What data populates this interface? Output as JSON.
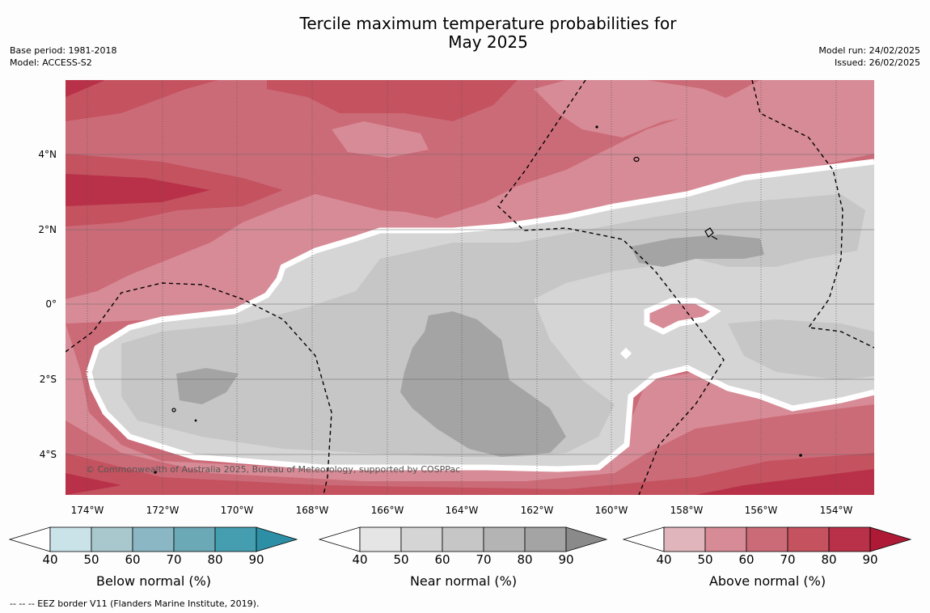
{
  "title": {
    "line1": "Tercile maximum temperature probabilities for",
    "line2": "May 2025"
  },
  "meta_left": {
    "base_period": "Base period: 1981-2018",
    "model": "Model: ACCESS-S2"
  },
  "meta_right": {
    "model_run": "Model run: 24/02/2025",
    "issued": "Issued: 26/02/2025"
  },
  "map": {
    "x_ticks": [
      "174°W",
      "172°W",
      "170°W",
      "168°W",
      "166°W",
      "164°W",
      "162°W",
      "160°W",
      "158°W",
      "156°W",
      "154°W"
    ],
    "y_ticks": [
      "4°N",
      "2°N",
      "0°",
      "2°S",
      "4°S"
    ],
    "copyright": "© Commonwealth of Australia 2025, Bureau of Meteorology, supported by COSPPac",
    "colors": {
      "above": [
        "#e0b6bc",
        "#d78b96",
        "#cc6b78",
        "#c4525f",
        "#b83148",
        "#ae1a36"
      ],
      "near": [
        "#e5e5e5",
        "#d5d5d5",
        "#c6c6c6",
        "#b4b4b4",
        "#a4a4a4",
        "#8a8a8a"
      ],
      "below": [
        "#cae3e9",
        "#a8c8cd",
        "#8ab7c3",
        "#6ba9b6",
        "#449eaf",
        "#2c8fa6"
      ],
      "land": "#ffffff",
      "boundary": "#ffffff",
      "eez": "#000000"
    }
  },
  "colorbars": [
    {
      "label": "Below normal (%)",
      "ticks": [
        "40",
        "50",
        "60",
        "70",
        "80",
        "90"
      ]
    },
    {
      "label": "Near normal (%)",
      "ticks": [
        "40",
        "50",
        "60",
        "70",
        "80",
        "90"
      ]
    },
    {
      "label": "Above normal (%)",
      "ticks": [
        "40",
        "50",
        "60",
        "70",
        "80",
        "90"
      ]
    }
  ],
  "footer": "--  --  -- EEZ border V11 (Flanders Marine Institute, 2019)."
}
